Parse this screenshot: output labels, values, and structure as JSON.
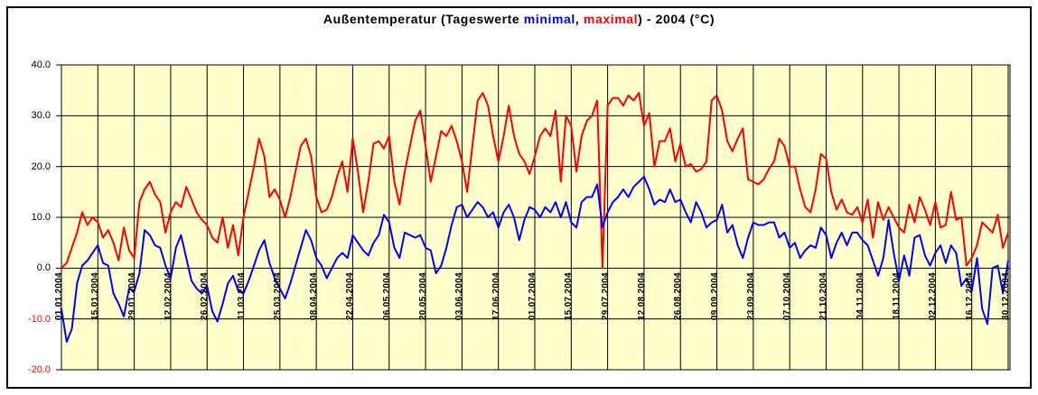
{
  "title_parts": {
    "t1": "Außentemperatur (Tageswerte ",
    "t2": "minimal",
    "t3": ", ",
    "t4": "maximal",
    "t5": ") - 2004 (°C)"
  },
  "colors": {
    "plot_background": "#FFFFCC",
    "grid": "#000000",
    "max_series": "#FF0000",
    "min_series": "#0000FF",
    "negative_axis_label": "#FF0000",
    "axis_label": "#000000"
  },
  "chart_data": {
    "type": "line",
    "title": "Außentemperatur (Tageswerte minimal, maximal) - 2004 (°C)",
    "xlabel": "",
    "ylabel": "",
    "ylim": [
      -20,
      40
    ],
    "grid": true,
    "legend": "color-coded words in title (minimal = blue, maximal = red)",
    "y_tick_values": [
      40,
      30,
      20,
      10,
      0,
      -10,
      -20
    ],
    "y_tick_labels": [
      "40.0",
      "30.0",
      "20.0",
      "10.0",
      "0.0",
      "-10.0",
      "-20.0"
    ],
    "x_tick_interval_days": 14,
    "x_tick_labels": [
      "01.01.2004",
      "15.01.2004",
      "29.01.2004",
      "12.02.2004",
      "26.02.2004",
      "11.03.2004",
      "25.03.2004",
      "08.04.2004",
      "22.04.2004",
      "06.05.2004",
      "20.05.2004",
      "03.06.2004",
      "17.06.2004",
      "01.07.2004",
      "15.07.2004",
      "29.07.2004",
      "12.08.2004",
      "26.08.2004",
      "09.09.2004",
      "23.09.2004",
      "07.10.2004",
      "21.10.2004",
      "04.11.2004",
      "18.11.2004",
      "02.12.2004",
      "16.12.2004",
      "30.12.2004"
    ],
    "sampling": {
      "start_day": 1,
      "step_days": 2,
      "days_in_year": 366
    },
    "series": [
      {
        "name": "maximal",
        "color": "#FF0000",
        "values": [
          0,
          1,
          4,
          7,
          11,
          8.5,
          10,
          9,
          6,
          7.5,
          5,
          1.5,
          8,
          3.5,
          2,
          13,
          15.5,
          17,
          14.5,
          13,
          7,
          11,
          13,
          12,
          16,
          13.5,
          11,
          9.5,
          8.5,
          6,
          5,
          10,
          4,
          8.5,
          2.5,
          10,
          15,
          20,
          25.5,
          22,
          14,
          15.5,
          13.5,
          10,
          14,
          19,
          24,
          25.5,
          22,
          14,
          11,
          11.5,
          14,
          18,
          21,
          15,
          25.5,
          19,
          11,
          17,
          24.5,
          25,
          23.5,
          26,
          17,
          12.5,
          19,
          24,
          29,
          31,
          24,
          17,
          22,
          27,
          26,
          28,
          25,
          21,
          15,
          24,
          33,
          34.5,
          32,
          26,
          21,
          26,
          32,
          26,
          22.5,
          21,
          18.5,
          22,
          26,
          27.5,
          26,
          31,
          17,
          30,
          28,
          19,
          26,
          29,
          30,
          33,
          0,
          32,
          33.5,
          33.5,
          32,
          34,
          33,
          34.5,
          28,
          30.5,
          20,
          25,
          25,
          27.5,
          21,
          24.5,
          20,
          20.5,
          19,
          19.5,
          21,
          33,
          34,
          31,
          25,
          23,
          25.5,
          27.5,
          17.5,
          17,
          16.5,
          17.5,
          19.5,
          21,
          25.5,
          24,
          20,
          20,
          15.5,
          12,
          11,
          15.5,
          22.5,
          21.5,
          15,
          11.5,
          13.5,
          11,
          10.5,
          12,
          9,
          13.5,
          6,
          13,
          9.5,
          12,
          10,
          8,
          7,
          12.5,
          9,
          14,
          11.5,
          8.5,
          13,
          8,
          8.5,
          15,
          9.5,
          10,
          0.5,
          2,
          4.5,
          9,
          8,
          7,
          10.5,
          4,
          7
        ]
      },
      {
        "name": "minimal",
        "color": "#0000FF",
        "values": [
          -8,
          -14.5,
          -12,
          -3,
          0.5,
          1.5,
          3,
          4.5,
          1,
          0.5,
          -5,
          -7,
          -9.5,
          -4,
          -4.5,
          -1,
          7.5,
          6.5,
          4.5,
          4,
          0.5,
          -2,
          4,
          6.5,
          2,
          -2.5,
          -4,
          -5,
          -3.5,
          -8.5,
          -10.5,
          -7,
          -3,
          -1.5,
          -4.5,
          -5,
          -2.5,
          0.5,
          3.5,
          5.5,
          1,
          -2,
          -4,
          -6,
          -3,
          0.5,
          4,
          7.5,
          5.5,
          2,
          0.5,
          -2,
          0,
          2,
          3,
          2,
          6.5,
          5,
          3.5,
          2.5,
          5,
          6.5,
          10.5,
          9,
          4,
          2,
          7,
          6.5,
          6,
          6.5,
          4,
          3.5,
          -1,
          0.5,
          4,
          8.5,
          12,
          12.5,
          10,
          11.5,
          13,
          12,
          10,
          11,
          8,
          11,
          12.5,
          10,
          5.5,
          9.5,
          12,
          11.5,
          10,
          12,
          11,
          13,
          10,
          13,
          9,
          8,
          13,
          14,
          14,
          16.5,
          8,
          11,
          13,
          14,
          15.5,
          14,
          16,
          17,
          18,
          15.5,
          12.5,
          13.5,
          13,
          15.5,
          13,
          13.5,
          11,
          9,
          13,
          11,
          8,
          9,
          9.5,
          12.5,
          7,
          8.5,
          4.5,
          2,
          6,
          9,
          8.5,
          8.5,
          9,
          9,
          6,
          7,
          4,
          5,
          2,
          3.5,
          4.5,
          4,
          8,
          6.5,
          2,
          5,
          7,
          4.5,
          7,
          7,
          5.5,
          4.5,
          1.5,
          -1.5,
          2,
          9.5,
          3,
          -2.5,
          2.5,
          -1.5,
          6,
          6.5,
          2.5,
          0.5,
          3,
          4.5,
          1,
          4.5,
          3,
          -3.5,
          -2,
          -4.5,
          2,
          -8,
          -11,
          0,
          0.5,
          -5,
          1.5
        ]
      }
    ]
  }
}
